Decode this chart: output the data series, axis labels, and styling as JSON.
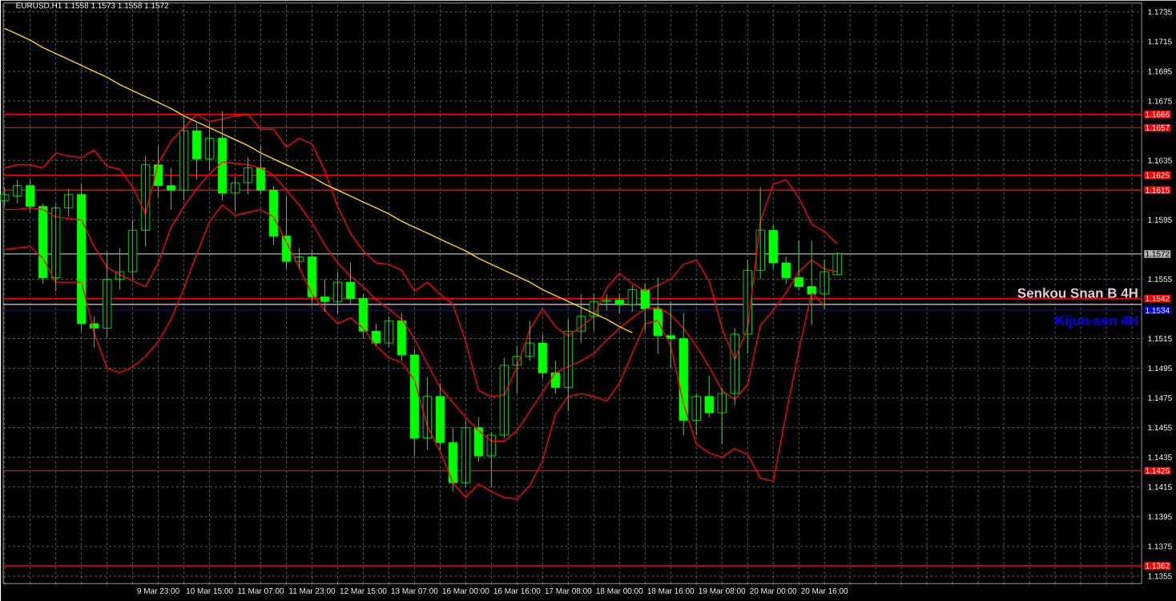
{
  "chart_data": {
    "type": "candlestick",
    "title": "EURUSD,H1  1.1558 1.1573 1.1558 1.1572",
    "color": "#00ff00",
    "categories": [
      null,
      null,
      null,
      null,
      null,
      null,
      null,
      null,
      null,
      null,
      null,
      null,
      "9 Mar 23:00",
      null,
      null,
      null,
      "10 Mar 15:00",
      null,
      null,
      null,
      "11 Mar 07:00",
      null,
      null,
      null,
      "11 Mar 23:00",
      null,
      null,
      null,
      "12 Mar 15:00",
      null,
      null,
      null,
      "13 Mar 07:00",
      null,
      null,
      null,
      "16 Mar 00:00",
      null,
      null,
      null,
      "16 Mar 16:00",
      null,
      null,
      null,
      "17 Mar 08:00",
      null,
      null,
      null,
      "18 Mar 00:00",
      null,
      null,
      null,
      "18 Mar 16:00",
      null,
      null,
      null,
      "19 Mar 08:00",
      null,
      null,
      null,
      "20 Mar 00:00",
      null,
      null,
      null,
      "20 Mar 16:00",
      null
    ],
    "ohlc": [
      [
        1.1608,
        1.1617,
        1.1604,
        1.1612
      ],
      [
        1.1611,
        1.1622,
        1.1606,
        1.1618
      ],
      [
        1.1618,
        1.1622,
        1.16,
        1.1604
      ],
      [
        1.1604,
        1.1606,
        1.1552,
        1.1556
      ],
      [
        1.1556,
        1.1606,
        1.1547,
        1.1603
      ],
      [
        1.1603,
        1.1616,
        1.1597,
        1.1612
      ],
      [
        1.1612,
        1.1619,
        1.152,
        1.1525
      ],
      [
        1.1525,
        1.153,
        1.1509,
        1.1522
      ],
      [
        1.1522,
        1.1573,
        1.1516,
        1.1555
      ],
      [
        1.1555,
        1.1576,
        1.1548,
        1.156
      ],
      [
        1.156,
        1.1595,
        1.1555,
        1.1588
      ],
      [
        1.1588,
        1.1638,
        1.1577,
        1.1632
      ],
      [
        1.1632,
        1.1645,
        1.161,
        1.1618
      ],
      [
        1.1618,
        1.163,
        1.1602,
        1.1615
      ],
      [
        1.1615,
        1.1665,
        1.1608,
        1.1655
      ],
      [
        1.1655,
        1.166,
        1.1622,
        1.1636
      ],
      [
        1.1636,
        1.166,
        1.1628,
        1.165
      ],
      [
        1.165,
        1.1668,
        1.1608,
        1.1613
      ],
      [
        1.1613,
        1.1624,
        1.1601,
        1.162
      ],
      [
        1.162,
        1.1637,
        1.1612,
        1.163
      ],
      [
        1.163,
        1.1645,
        1.1612,
        1.1615
      ],
      [
        1.1615,
        1.1618,
        1.1578,
        1.1584
      ],
      [
        1.1584,
        1.1611,
        1.1562,
        1.1567
      ],
      [
        1.1567,
        1.1576,
        1.1562,
        1.157
      ],
      [
        1.157,
        1.1575,
        1.1537,
        1.1543
      ],
      [
        1.1543,
        1.1555,
        1.1533,
        1.154
      ],
      [
        1.154,
        1.156,
        1.1532,
        1.1553
      ],
      [
        1.1553,
        1.1566,
        1.1538,
        1.1542
      ],
      [
        1.1542,
        1.1545,
        1.1515,
        1.152
      ],
      [
        1.152,
        1.1525,
        1.151,
        1.1512
      ],
      [
        1.1512,
        1.153,
        1.1509,
        1.1527
      ],
      [
        1.1527,
        1.1532,
        1.15,
        1.1504
      ],
      [
        1.1504,
        1.1508,
        1.1436,
        1.1448
      ],
      [
        1.1448,
        1.1489,
        1.144,
        1.1476
      ],
      [
        1.1476,
        1.1485,
        1.144,
        1.1445
      ],
      [
        1.1445,
        1.1455,
        1.1412,
        1.1418
      ],
      [
        1.1418,
        1.146,
        1.1415,
        1.1455
      ],
      [
        1.1455,
        1.1462,
        1.1432,
        1.1436
      ],
      [
        1.1436,
        1.1452,
        1.1415,
        1.145
      ],
      [
        1.145,
        1.1502,
        1.1448,
        1.1497
      ],
      [
        1.1497,
        1.151,
        1.1478,
        1.1503
      ],
      [
        1.1503,
        1.1527,
        1.15,
        1.1512
      ],
      [
        1.1512,
        1.1518,
        1.1488,
        1.1492
      ],
      [
        1.1492,
        1.15,
        1.1478,
        1.1482
      ],
      [
        1.1482,
        1.1528,
        1.1466,
        1.152
      ],
      [
        1.152,
        1.1545,
        1.1512,
        1.153
      ],
      [
        1.153,
        1.1545,
        1.152,
        1.154
      ],
      [
        1.154,
        1.1545,
        1.1534,
        1.1541
      ],
      [
        1.1541,
        1.1545,
        1.1532,
        1.1538
      ],
      [
        1.1538,
        1.1551,
        1.1533,
        1.1548
      ],
      [
        1.1548,
        1.1552,
        1.152,
        1.1535
      ],
      [
        1.1535,
        1.1556,
        1.1505,
        1.1517
      ],
      [
        1.1517,
        1.154,
        1.1495,
        1.1515
      ],
      [
        1.1515,
        1.1532,
        1.145,
        1.146
      ],
      [
        1.146,
        1.1478,
        1.145,
        1.1476
      ],
      [
        1.1476,
        1.149,
        1.1462,
        1.1465
      ],
      [
        1.1465,
        1.1482,
        1.1444,
        1.1478
      ],
      [
        1.1478,
        1.1522,
        1.147,
        1.1518
      ],
      [
        1.1518,
        1.1568,
        1.1505,
        1.1561
      ],
      [
        1.1561,
        1.1617,
        1.1555,
        1.1588
      ],
      [
        1.1588,
        1.1592,
        1.1562,
        1.1566
      ],
      [
        1.1566,
        1.157,
        1.1552,
        1.1556
      ],
      [
        1.1556,
        1.1581,
        1.1548,
        1.155
      ],
      [
        1.155,
        1.1581,
        1.1524,
        1.1545
      ],
      [
        1.1545,
        1.1568,
        1.1535,
        1.156
      ],
      [
        1.1558,
        1.1573,
        1.1558,
        1.1572
      ]
    ],
    "series": [
      {
        "type": "line",
        "color": "#ff0000",
        "values": [
          1.163,
          1.1632,
          1.1632,
          1.163,
          1.164,
          1.1638,
          1.1637,
          1.1642,
          1.1631,
          1.1629,
          1.1617,
          1.1599,
          1.1633,
          1.1648,
          1.1657,
          1.1666,
          1.1661,
          1.1663,
          1.1665,
          1.1666,
          1.1656,
          1.1656,
          1.1644,
          1.165,
          1.1646,
          1.1628,
          1.1604,
          1.1586,
          1.1574,
          1.1566,
          1.1565,
          1.1561,
          1.1547,
          1.1553,
          1.1545,
          1.1538,
          1.1513,
          1.148,
          1.1476,
          1.1477,
          1.1496,
          1.1521,
          1.1535,
          1.1523,
          1.1517,
          1.1523,
          1.153,
          1.1549,
          1.1559,
          1.1552,
          1.1547,
          1.1551,
          1.1555,
          1.1565,
          1.1568,
          1.1554,
          1.1522,
          1.1501,
          1.1522,
          1.1594,
          1.1619,
          1.1622,
          1.161,
          1.1592,
          1.1587,
          1.1579
        ]
      },
      {
        "type": "line",
        "color": "#ff0000",
        "values": [
          1.1602,
          1.1602,
          1.1603,
          1.1602,
          1.1597,
          1.1596,
          1.1595,
          1.1577,
          1.1563,
          1.1558,
          1.1554,
          1.155,
          1.1566,
          1.159,
          1.1604,
          1.1616,
          1.1626,
          1.1634,
          1.1633,
          1.1632,
          1.163,
          1.1625,
          1.1615,
          1.1605,
          1.1593,
          1.1578,
          1.1566,
          1.1557,
          1.155,
          1.1541,
          1.1535,
          1.1528,
          1.1515,
          1.1498,
          1.1482,
          1.1472,
          1.1462,
          1.1453,
          1.1446,
          1.1446,
          1.1453,
          1.1466,
          1.1479,
          1.1492,
          1.1496,
          1.15,
          1.1505,
          1.1514,
          1.1522,
          1.1529,
          1.1535,
          1.1536,
          1.1531,
          1.1522,
          1.151,
          1.1496,
          1.148,
          1.1474,
          1.1484,
          1.1524,
          1.1534,
          1.1546,
          1.156,
          1.1568,
          1.1562,
          1.156
        ]
      },
      {
        "type": "line",
        "color": "#ff0000",
        "values": [
          1.1575,
          1.1576,
          1.1577,
          1.1569,
          1.1553,
          1.1553,
          1.1553,
          1.1519,
          1.1495,
          1.1492,
          1.1496,
          1.1503,
          1.1513,
          1.1528,
          1.1549,
          1.1572,
          1.1594,
          1.1605,
          1.1598,
          1.16,
          1.1602,
          1.1597,
          1.158,
          1.1563,
          1.1545,
          1.1534,
          1.1525,
          1.1529,
          1.1522,
          1.151,
          1.1502,
          1.1499,
          1.1487,
          1.1456,
          1.1439,
          1.1418,
          1.1408,
          1.1417,
          1.1412,
          1.1408,
          1.1407,
          1.1416,
          1.1433,
          1.1464,
          1.1476,
          1.1478,
          1.1476,
          1.1473,
          1.1485,
          1.1505,
          1.1525,
          1.1527,
          1.151,
          1.1471,
          1.1444,
          1.1438,
          1.1435,
          1.1441,
          1.1437,
          1.1421,
          1.1419,
          1.1464,
          1.1507,
          1.1546,
          1.1537,
          null
        ]
      },
      {
        "type": "line",
        "color": "#ffd700",
        "values": [
          1.1724,
          1.172,
          1.1716,
          1.1711,
          1.1707,
          1.1703,
          1.1699,
          1.1695,
          1.1691,
          1.1686,
          1.1682,
          1.1678,
          1.1674,
          1.167,
          1.1665,
          1.1661,
          1.1657,
          1.1653,
          1.1649,
          1.1645,
          1.164,
          1.1636,
          1.1632,
          1.1628,
          1.1624,
          1.1619,
          1.1615,
          1.1611,
          1.1607,
          1.1603,
          1.1599,
          1.1594,
          1.159,
          1.1586,
          1.1582,
          1.1578,
          1.1574,
          1.1569,
          1.1565,
          1.1561,
          1.1557,
          1.1553,
          1.1548,
          1.1544,
          1.154,
          1.1536,
          1.1532,
          1.1528,
          1.1523,
          1.1519,
          null,
          null,
          null,
          null,
          null,
          null,
          null,
          null,
          null,
          null,
          null,
          null,
          null,
          null,
          null,
          null
        ]
      }
    ],
    "ylim": [
      1.135,
      1.1741
    ],
    "yticks": [
      1.1355,
      1.1375,
      1.1395,
      1.1415,
      1.1435,
      1.1455,
      1.1475,
      1.1495,
      1.1515,
      1.1555,
      1.1595,
      1.1635,
      1.1675,
      1.1695,
      1.1715,
      1.1735
    ],
    "grid": true,
    "ref_lines": [
      {
        "axis": "y",
        "value": 1.1666,
        "label": "1.1666",
        "color": "#ff0000"
      },
      {
        "axis": "y",
        "value": 1.1657,
        "label": "1.1657",
        "color": "#ff0000"
      },
      {
        "axis": "y",
        "value": 1.1625,
        "label": "1.1625",
        "color": "#ff0000"
      },
      {
        "axis": "y",
        "value": 1.1615,
        "label": "1.1615",
        "color": "#ff0000"
      },
      {
        "axis": "y",
        "value": 1.1572,
        "label": "1.1572",
        "color": "#b4b4b4"
      },
      {
        "axis": "y",
        "value": 1.1542,
        "label": "1.1542",
        "color": "#ff0000"
      },
      {
        "axis": "y",
        "value": 1.1538,
        "color": "#e6c8dc"
      },
      {
        "axis": "y",
        "value": 1.1534,
        "label": "1.1534",
        "color": "#0000ff"
      },
      {
        "axis": "y",
        "value": 1.1426,
        "label": "1.1426",
        "color": "#ff0000"
      },
      {
        "axis": "y",
        "value": 1.1362,
        "label": "1.1362",
        "color": "#ff0000"
      }
    ],
    "annotations": [
      {
        "text": "Senkou Snan B 4H",
        "y": 1.1538
      },
      {
        "text": "Kijun-sen 4H",
        "y": 1.1534
      }
    ]
  }
}
